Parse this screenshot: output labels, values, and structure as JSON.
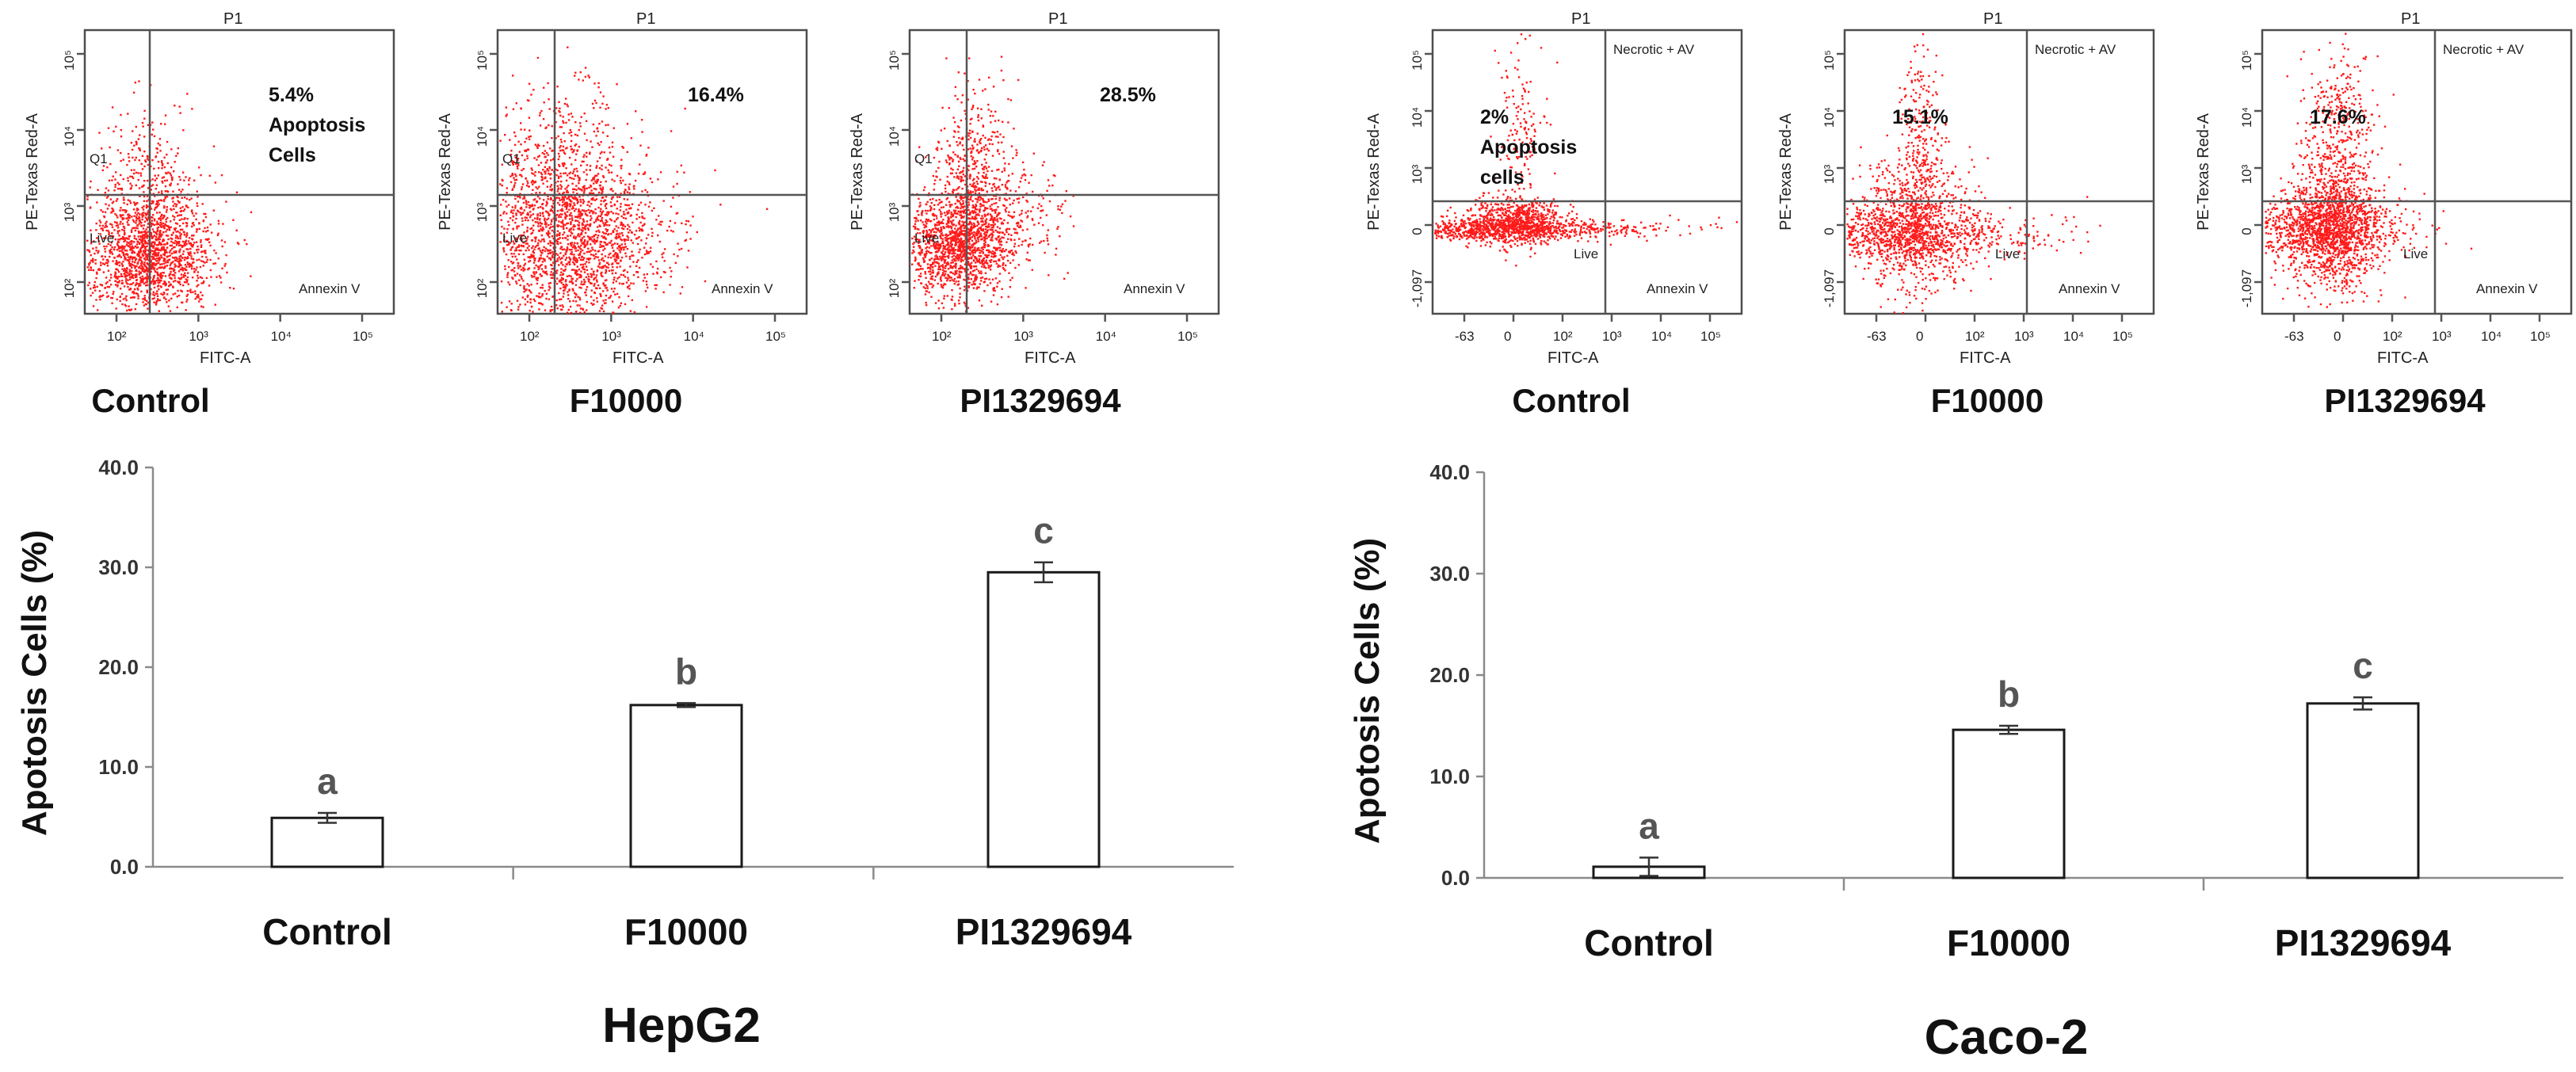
{
  "flow_panels": [
    {
      "group": "HepG2",
      "label": "Control",
      "gate": "P1",
      "ylabel": "PE-Texas Red-A",
      "xlabel": "FITC-A",
      "quadrants": {
        "ul": "Q1",
        "ll": "Live",
        "lr": "Annexin V"
      },
      "pct_lines": [
        "5.4%",
        "Apoptosis",
        "Cells"
      ],
      "x_ticks": [
        "10²",
        "10³",
        "10⁴",
        "10⁵"
      ],
      "y_ticks": [
        "10²",
        "10³",
        "10⁴",
        "10⁵"
      ]
    },
    {
      "group": "HepG2",
      "label": "F10000",
      "gate": "P1",
      "ylabel": "PE-Texas Red-A",
      "xlabel": "FITC-A",
      "quadrants": {
        "ul": "Q1",
        "ll": "Live",
        "lr": "Annexin V"
      },
      "pct_lines": [
        "16.4%"
      ],
      "x_ticks": [
        "10²",
        "10³",
        "10⁴",
        "10⁵"
      ],
      "y_ticks": [
        "10²",
        "10³",
        "10⁴",
        "10⁵"
      ]
    },
    {
      "group": "HepG2",
      "label": "PI1329694",
      "gate": "P1",
      "ylabel": "PE-Texas Red-A",
      "xlabel": "FITC-A",
      "quadrants": {
        "ul": "Q1",
        "ll": "Live",
        "lr": "Annexin V"
      },
      "pct_lines": [
        "28.5%"
      ],
      "x_ticks": [
        "10²",
        "10³",
        "10⁴",
        "10⁵"
      ],
      "y_ticks": [
        "10²",
        "10³",
        "10⁴",
        "10⁵"
      ]
    },
    {
      "group": "Caco-2",
      "label": "Control",
      "gate": "P1",
      "ylabel": "PE-Texas Red-A",
      "xlabel": "FITC-A",
      "quadrants": {
        "ur": "Necrotic + AV",
        "ll": "Live",
        "lr": "Annexin V"
      },
      "pct_lines": [
        "2%",
        "Apoptosis",
        "cells"
      ],
      "x_ticks": [
        "-63",
        "0",
        "10²",
        "10³",
        "10⁴",
        "10⁵"
      ],
      "y_ticks": [
        "-1,097",
        "0",
        "10³",
        "10⁴",
        "10⁵"
      ]
    },
    {
      "group": "Caco-2",
      "label": "F10000",
      "gate": "P1",
      "ylabel": "PE-Texas Red-A",
      "xlabel": "FITC-A",
      "quadrants": {
        "ur": "Necrotic + AV",
        "ll": "Live",
        "lr": "Annexin V"
      },
      "pct_lines": [
        "15.1%"
      ],
      "x_ticks": [
        "-63",
        "0",
        "10²",
        "10³",
        "10⁴",
        "10⁵"
      ],
      "y_ticks": [
        "-1,097",
        "0",
        "10³",
        "10⁴",
        "10⁵"
      ]
    },
    {
      "group": "Caco-2",
      "label": "PI1329694",
      "gate": "P1",
      "ylabel": "PE-Texas Red-A",
      "xlabel": "FITC-A",
      "quadrants": {
        "ur": "Necrotic + AV",
        "ll": "Live",
        "lr": "Annexin V"
      },
      "pct_lines": [
        "17.6%"
      ],
      "x_ticks": [
        "-63",
        "0",
        "10²",
        "10³",
        "10⁴",
        "10⁵"
      ],
      "y_ticks": [
        "-1,097",
        "0",
        "10³",
        "10⁴",
        "10⁵"
      ]
    }
  ],
  "chart_data": [
    {
      "type": "bar",
      "title": "HepG2",
      "ylabel": "Apotosis Cells (%)",
      "xlabel": "",
      "categories": [
        "Control",
        "F10000",
        "PI1329694"
      ],
      "values": [
        4.9,
        16.2,
        29.5
      ],
      "errors": [
        0.5,
        0.2,
        1.0
      ],
      "letters": [
        "a",
        "b",
        "c"
      ],
      "ylim": [
        0,
        40
      ],
      "yticks": [
        "0.0",
        "10.0",
        "20.0",
        "30.0",
        "40.0"
      ],
      "grid": false,
      "color": "#ffffff"
    },
    {
      "type": "bar",
      "title": "Caco-2",
      "ylabel": "Apotosis Cells (%)",
      "xlabel": "",
      "categories": [
        "Control",
        "F10000",
        "PI1329694"
      ],
      "values": [
        1.1,
        14.6,
        17.2
      ],
      "errors": [
        0.9,
        0.4,
        0.6
      ],
      "letters": [
        "a",
        "b",
        "c"
      ],
      "ylim": [
        0,
        40
      ],
      "yticks": [
        "0.0",
        "10.0",
        "20.0",
        "30.0",
        "40.0"
      ],
      "grid": false,
      "color": "#ffffff"
    }
  ],
  "colors": {
    "dots": "#ff1a1a",
    "axis": "#8a8a8a",
    "bar_fill": "#ffffff"
  }
}
